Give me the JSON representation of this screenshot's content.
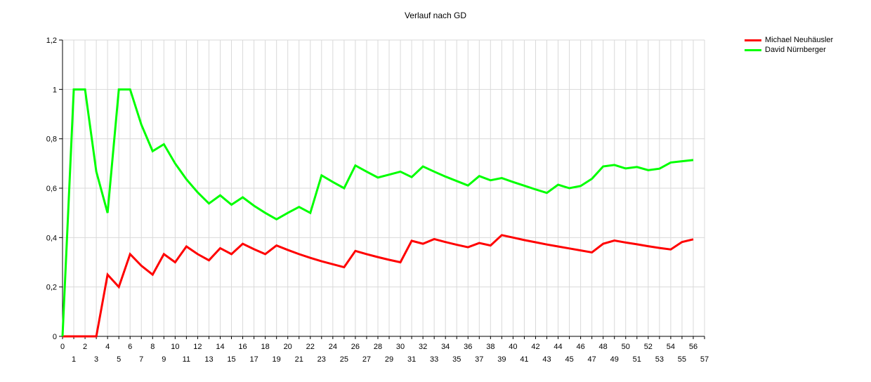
{
  "chart_data": {
    "type": "line",
    "title": "Verlauf nach GD",
    "xlabel": "",
    "ylabel": "",
    "xlim": [
      0,
      57
    ],
    "ylim": [
      0,
      1.2
    ],
    "y_ticks": [
      "0",
      "0,2",
      "0,4",
      "0,6",
      "0,8",
      "1",
      "1,2"
    ],
    "y_tick_values": [
      0,
      0.2,
      0.4,
      0.6,
      0.8,
      1.0,
      1.2
    ],
    "grid": true,
    "legend_position": "top-right",
    "x": [
      0,
      1,
      2,
      3,
      4,
      5,
      6,
      7,
      8,
      9,
      10,
      11,
      12,
      13,
      14,
      15,
      16,
      17,
      18,
      19,
      20,
      21,
      22,
      23,
      24,
      25,
      26,
      27,
      28,
      29,
      30,
      31,
      32,
      33,
      34,
      35,
      36,
      37,
      38,
      39,
      40,
      41,
      42,
      43,
      44,
      45,
      46,
      47,
      48,
      49,
      50,
      51,
      52,
      53,
      54,
      55,
      56
    ],
    "series": [
      {
        "name": "Michael Neuhäusler",
        "color": "#ff0000",
        "values": [
          0,
          0,
          0,
          0,
          0.25,
          0.2,
          0.333,
          0.286,
          0.25,
          0.333,
          0.3,
          0.364,
          0.333,
          0.308,
          0.357,
          0.333,
          0.375,
          0.353,
          0.333,
          0.368,
          0.35,
          0.333,
          0.318,
          0.304,
          0.292,
          0.28,
          0.346,
          0.333,
          0.321,
          0.31,
          0.3,
          0.387,
          0.375,
          0.394,
          0.382,
          0.371,
          0.361,
          0.378,
          0.368,
          0.41,
          0.4,
          0.39,
          0.381,
          0.372,
          0.364,
          0.356,
          0.348,
          0.34,
          0.375,
          0.388,
          0.38,
          0.373,
          0.365,
          0.358,
          0.352,
          0.382,
          0.393
        ]
      },
      {
        "name": "David Nürnberger",
        "color": "#00ff00",
        "values": [
          0,
          1,
          1,
          0.667,
          0.5,
          1,
          1,
          0.857,
          0.75,
          0.778,
          0.7,
          0.636,
          0.583,
          0.538,
          0.571,
          0.533,
          0.563,
          0.529,
          0.5,
          0.474,
          0.5,
          0.524,
          0.5,
          0.652,
          0.625,
          0.6,
          0.692,
          0.667,
          0.643,
          0.655,
          0.667,
          0.645,
          0.688,
          0.667,
          0.647,
          0.629,
          0.611,
          0.649,
          0.632,
          0.641,
          0.625,
          0.61,
          0.595,
          0.581,
          0.614,
          0.6,
          0.609,
          0.638,
          0.688,
          0.694,
          0.68,
          0.686,
          0.673,
          0.679,
          0.704,
          0.709,
          0.714
        ]
      }
    ]
  }
}
